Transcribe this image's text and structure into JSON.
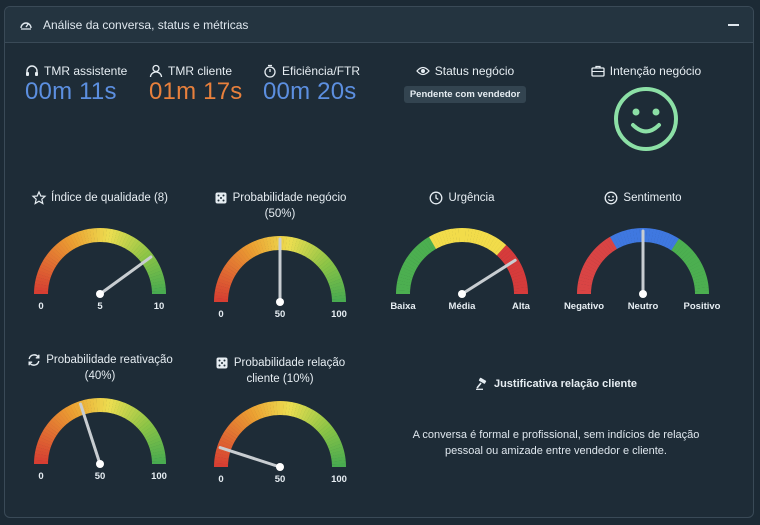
{
  "header": {
    "title": "Análise da conversa, status e métricas"
  },
  "metrics": [
    {
      "label": "TMR assistente",
      "value": "00m 11s",
      "color": "#5c8fe0",
      "icon": "headset-icon"
    },
    {
      "label": "TMR cliente",
      "value": "01m 17s",
      "color": "#e8803c",
      "icon": "user-icon"
    },
    {
      "label": "Eficiência/FTR",
      "value": "00m 20s",
      "color": "#5c8fe0",
      "icon": "stopwatch-icon"
    }
  ],
  "status": {
    "label": "Status negócio",
    "badge": "Pendente com vendedor"
  },
  "intent": {
    "label": "Intenção negócio",
    "face": "smiley-icon",
    "face_color": "#8ce0a6"
  },
  "gauges": [
    {
      "title": "Índice de qualidade (8)",
      "icon": "star-icon",
      "ticks": [
        "0",
        "5",
        "10"
      ],
      "fraction": 0.8,
      "scheme": "gradient"
    },
    {
      "title": "Probabilidade negócio",
      "subtitle": "(50%)",
      "icon": "dice-icon",
      "ticks": [
        "0",
        "50",
        "100"
      ],
      "fraction": 0.5,
      "scheme": "gradient"
    },
    {
      "title": "Urgência",
      "icon": "clock-icon",
      "ticks": [
        "Baixa",
        "Média",
        "Alta"
      ],
      "fraction": 0.82,
      "scheme": "green-yellow-red"
    },
    {
      "title": "Sentimento",
      "icon": "smile-icon",
      "ticks": [
        "Negativo",
        "Neutro",
        "Positivo"
      ],
      "fraction": 0.5,
      "scheme": "red-blue-green"
    },
    {
      "title": "Probabilidade reativação",
      "subtitle": "(40%)",
      "icon": "refresh-icon",
      "ticks": [
        "0",
        "50",
        "100"
      ],
      "fraction": 0.4,
      "scheme": "gradient"
    },
    {
      "title": "Probabilidade relação",
      "subtitle": "cliente (10%)",
      "icon": "dice-icon",
      "ticks": [
        "0",
        "50",
        "100"
      ],
      "fraction": 0.1,
      "scheme": "gradient"
    }
  ],
  "justification": {
    "title": "Justificativa relação cliente",
    "icon": "gavel-icon",
    "text": "A conversa é formal e profissional, sem indícios de relação pessoal ou amizade entre vendedor e cliente."
  }
}
